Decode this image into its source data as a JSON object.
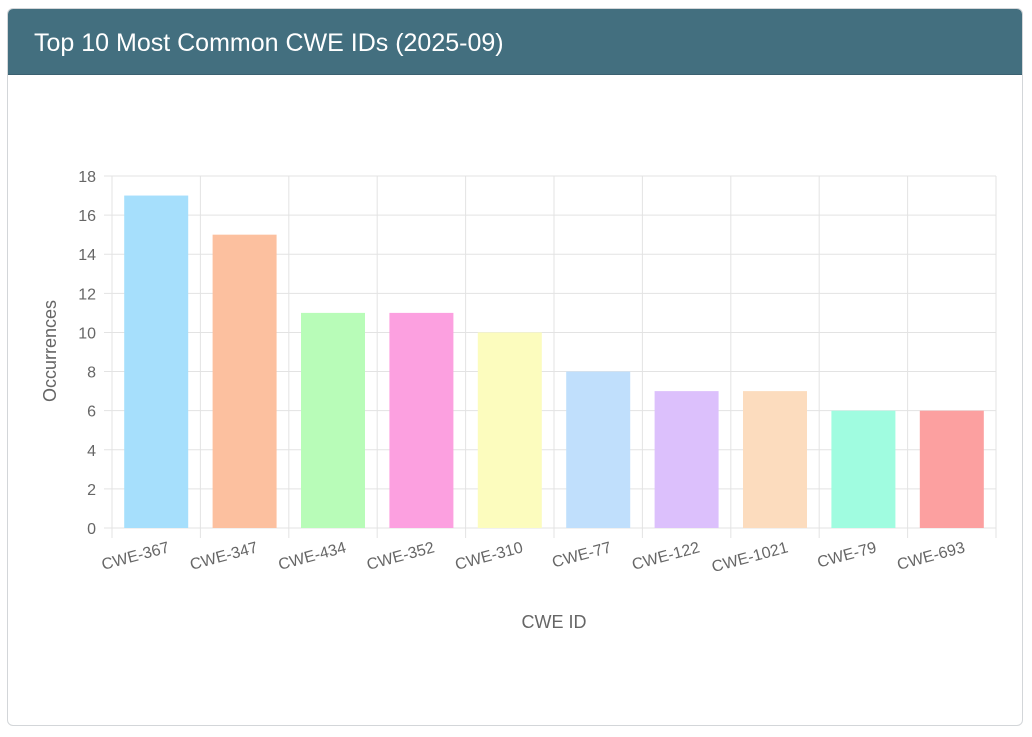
{
  "card": {
    "title": "Top 10 Most Common CWE IDs (2025-09)"
  },
  "colors": {
    "header_bg": "#436f7f",
    "header_text": "#ffffff",
    "grid": "#e3e3e3",
    "tick_text": "#666666"
  },
  "chart_data": {
    "type": "bar",
    "title": "",
    "xlabel": "CWE ID",
    "ylabel": "Occurrences",
    "categories": [
      "CWE-367",
      "CWE-347",
      "CWE-434",
      "CWE-352",
      "CWE-310",
      "CWE-77",
      "CWE-122",
      "CWE-1021",
      "CWE-79",
      "CWE-693"
    ],
    "values": [
      17,
      15,
      11,
      11,
      10,
      8,
      7,
      7,
      6,
      6
    ],
    "bar_colors": [
      "#a6dffc",
      "#fcc09f",
      "#b8fcb8",
      "#fca0e0",
      "#fcfcbe",
      "#c0dffc",
      "#dcc0fc",
      "#fcdcbe",
      "#a0fce0",
      "#fca0a0"
    ],
    "ylim": [
      0,
      18
    ],
    "yticks": [
      0,
      2,
      4,
      6,
      8,
      10,
      12,
      14,
      16,
      18
    ],
    "grid": true,
    "legend": "none"
  }
}
